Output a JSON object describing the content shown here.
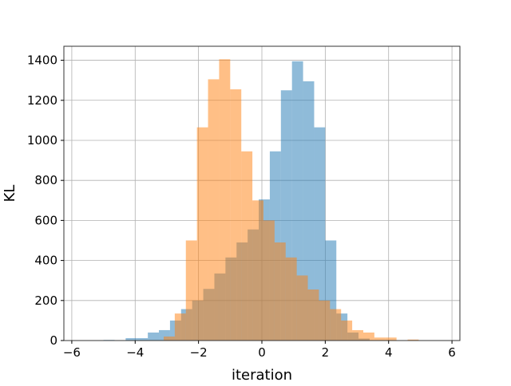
{
  "chart_data": {
    "type": "bar",
    "subtype": "overlapping-histogram",
    "title": "",
    "xlabel": "iteration",
    "ylabel": "KL",
    "xlim": [
      -6.25,
      6.25
    ],
    "ylim": [
      0,
      1470
    ],
    "xticks": [
      -6,
      -4,
      -2,
      0,
      2,
      4,
      6
    ],
    "xtick_labels": [
      "−6",
      "−4",
      "−2",
      "0",
      "2",
      "4",
      "6"
    ],
    "yticks": [
      0,
      200,
      400,
      600,
      800,
      1000,
      1200,
      1400
    ],
    "ytick_labels": [
      "0",
      "200",
      "400",
      "600",
      "800",
      "1000",
      "1200",
      "1400"
    ],
    "grid": true,
    "legend": "none",
    "series": [
      {
        "color": "#1f77b4",
        "opacity": 0.5,
        "bins": [
          {
            "x0": -5.0,
            "x1": -4.65,
            "y": 3
          },
          {
            "x0": -4.65,
            "x1": -4.3,
            "y": 0
          },
          {
            "x0": -4.3,
            "x1": -3.95,
            "y": 12
          },
          {
            "x0": -3.95,
            "x1": -3.6,
            "y": 12
          },
          {
            "x0": -3.6,
            "x1": -3.25,
            "y": 40
          },
          {
            "x0": -3.25,
            "x1": -2.9,
            "y": 52
          },
          {
            "x0": -2.9,
            "x1": -2.55,
            "y": 100
          },
          {
            "x0": -2.55,
            "x1": -2.2,
            "y": 157
          },
          {
            "x0": -2.2,
            "x1": -1.85,
            "y": 200
          },
          {
            "x0": -1.85,
            "x1": -1.5,
            "y": 258
          },
          {
            "x0": -1.5,
            "x1": -1.15,
            "y": 335
          },
          {
            "x0": -1.15,
            "x1": -0.8,
            "y": 415
          },
          {
            "x0": -0.8,
            "x1": -0.45,
            "y": 490
          },
          {
            "x0": -0.45,
            "x1": -0.1,
            "y": 555
          },
          {
            "x0": -0.1,
            "x1": 0.25,
            "y": 705
          },
          {
            "x0": 0.25,
            "x1": 0.6,
            "y": 945
          },
          {
            "x0": 0.6,
            "x1": 0.95,
            "y": 1250
          },
          {
            "x0": 0.95,
            "x1": 1.3,
            "y": 1395
          },
          {
            "x0": 1.3,
            "x1": 1.65,
            "y": 1295
          },
          {
            "x0": 1.65,
            "x1": 2.0,
            "y": 1065
          },
          {
            "x0": 2.0,
            "x1": 2.35,
            "y": 500
          },
          {
            "x0": 2.35,
            "x1": 2.7,
            "y": 135
          },
          {
            "x0": 2.7,
            "x1": 3.05,
            "y": 40
          },
          {
            "x0": 3.05,
            "x1": 3.4,
            "y": 10
          }
        ]
      },
      {
        "color": "#ff7f0e",
        "opacity": 0.5,
        "bins": [
          {
            "x0": -3.1,
            "x1": -2.75,
            "y": 20
          },
          {
            "x0": -2.75,
            "x1": -2.4,
            "y": 135
          },
          {
            "x0": -2.4,
            "x1": -2.05,
            "y": 500
          },
          {
            "x0": -2.05,
            "x1": -1.7,
            "y": 1065
          },
          {
            "x0": -1.7,
            "x1": -1.35,
            "y": 1305
          },
          {
            "x0": -1.35,
            "x1": -1.0,
            "y": 1405
          },
          {
            "x0": -1.0,
            "x1": -0.65,
            "y": 1255
          },
          {
            "x0": -0.65,
            "x1": -0.3,
            "y": 945
          },
          {
            "x0": -0.3,
            "x1": 0.05,
            "y": 700
          },
          {
            "x0": 0.05,
            "x1": 0.4,
            "y": 600
          },
          {
            "x0": 0.4,
            "x1": 0.75,
            "y": 490
          },
          {
            "x0": 0.75,
            "x1": 1.1,
            "y": 415
          },
          {
            "x0": 1.1,
            "x1": 1.45,
            "y": 325
          },
          {
            "x0": 1.45,
            "x1": 1.8,
            "y": 255
          },
          {
            "x0": 1.8,
            "x1": 2.15,
            "y": 200
          },
          {
            "x0": 2.15,
            "x1": 2.5,
            "y": 157
          },
          {
            "x0": 2.5,
            "x1": 2.85,
            "y": 100
          },
          {
            "x0": 2.85,
            "x1": 3.2,
            "y": 52
          },
          {
            "x0": 3.2,
            "x1": 3.55,
            "y": 40
          },
          {
            "x0": 3.55,
            "x1": 3.9,
            "y": 15
          },
          {
            "x0": 3.9,
            "x1": 4.25,
            "y": 15
          },
          {
            "x0": 4.25,
            "x1": 4.6,
            "y": 0
          },
          {
            "x0": 4.6,
            "x1": 4.95,
            "y": 5
          }
        ]
      }
    ]
  }
}
